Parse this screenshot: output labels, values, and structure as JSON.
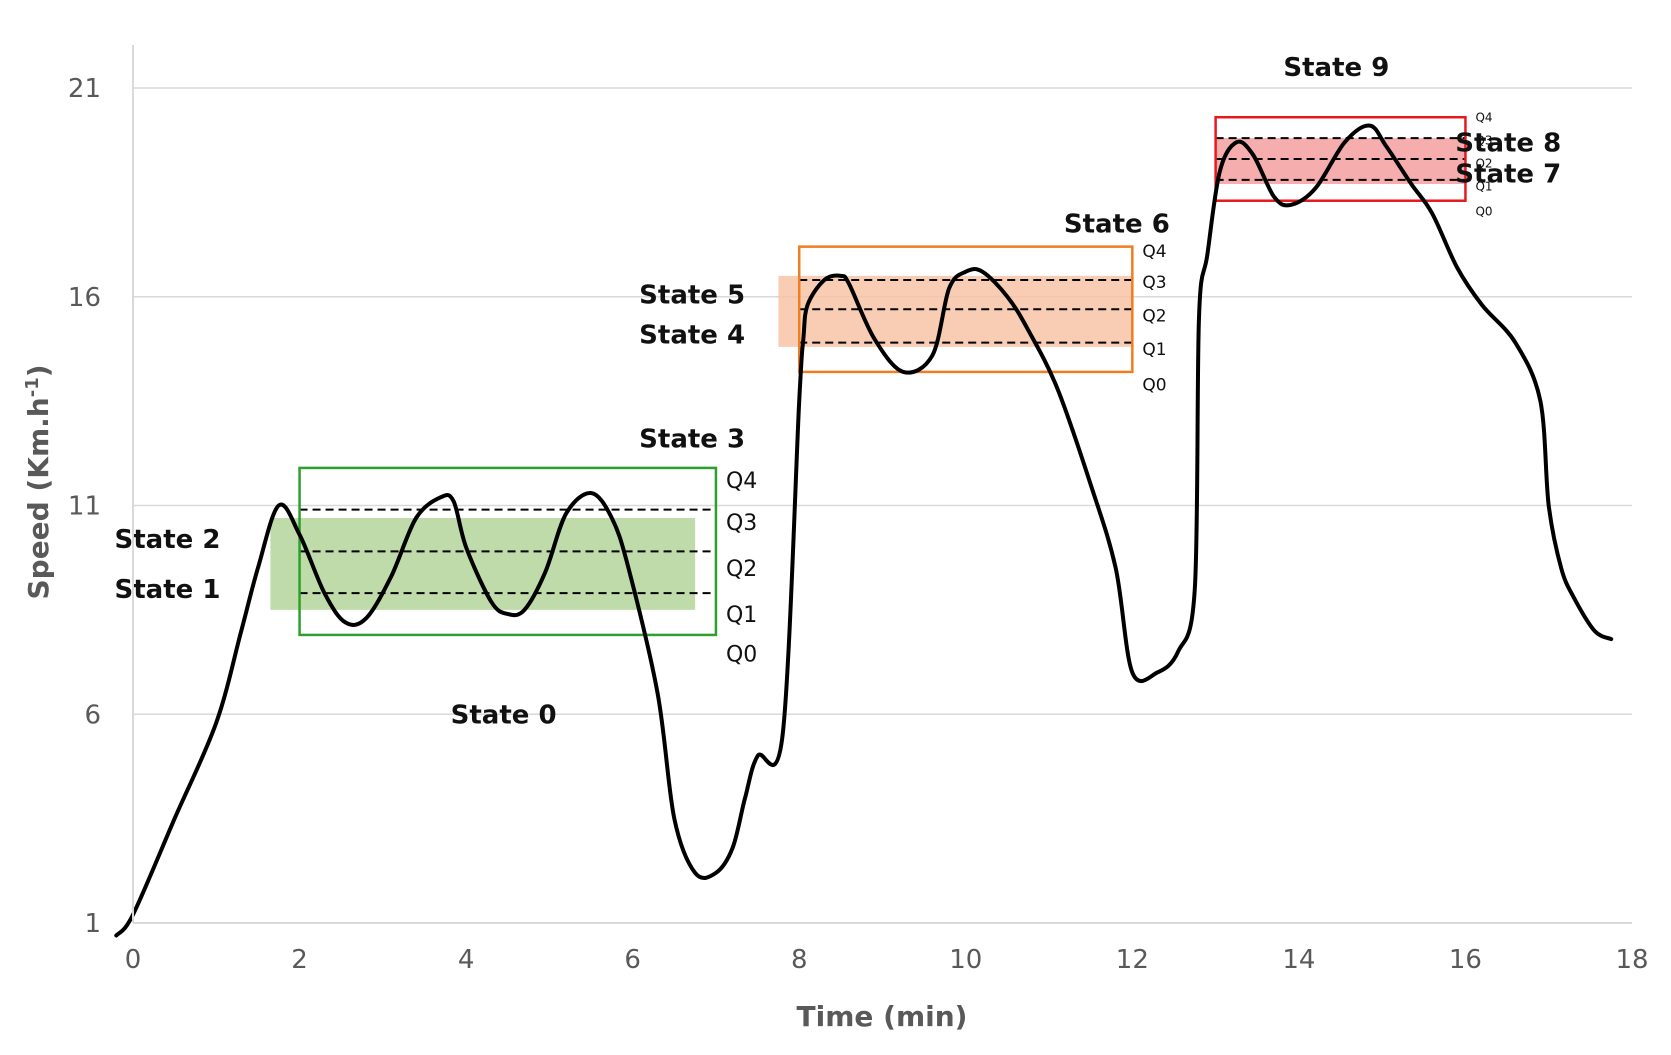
{
  "chart_data": {
    "type": "line",
    "title": "",
    "xlabel": "Time (min)",
    "ylabel_main": "Speed (Km.h",
    "ylabel_sup": "-1",
    "ylabel_end": ")",
    "xlim": [
      0,
      18
    ],
    "ylim": [
      1,
      21
    ],
    "xticks": [
      0,
      2,
      4,
      6,
      8,
      10,
      12,
      14,
      16,
      18
    ],
    "yticks": [
      1,
      6,
      11,
      16,
      21
    ],
    "grid": "horizontal",
    "series": [
      {
        "x": [
          -0.2,
          0,
          0.5,
          1.0,
          1.3,
          1.5,
          1.75,
          2.0,
          2.3,
          2.55,
          2.8,
          3.1,
          3.4,
          3.7,
          3.85,
          4.0,
          4.3,
          4.5,
          4.7,
          4.95,
          5.2,
          5.5,
          5.75,
          5.95,
          6.3,
          6.5,
          6.75,
          7.0,
          7.2,
          7.35,
          7.5,
          7.8,
          8.0,
          8.05,
          8.1,
          8.3,
          8.5,
          8.6,
          8.9,
          9.25,
          9.6,
          9.8,
          10.0,
          10.2,
          10.5,
          10.75,
          11.1,
          11.5,
          11.8,
          12.0,
          12.3,
          12.55,
          12.75,
          12.8,
          12.9,
          13.05,
          13.25,
          13.45,
          13.7,
          13.9,
          14.2,
          14.55,
          14.85,
          15.05,
          15.35,
          15.6,
          15.9,
          16.2,
          16.6,
          16.9,
          17.0,
          17.15,
          17.3,
          17.55,
          17.75
        ],
        "y": [
          0.7,
          1.2,
          3.5,
          5.8,
          8.0,
          9.5,
          11.0,
          10.3,
          8.9,
          8.2,
          8.3,
          9.3,
          10.7,
          11.2,
          11.1,
          10.0,
          8.7,
          8.4,
          8.5,
          9.4,
          10.8,
          11.3,
          10.7,
          9.5,
          6.5,
          3.5,
          2.2,
          2.2,
          2.8,
          4.0,
          5.0,
          5.5,
          13.5,
          15.0,
          15.8,
          16.4,
          16.5,
          16.3,
          15.0,
          14.2,
          14.6,
          16.2,
          16.6,
          16.6,
          16.0,
          15.2,
          13.8,
          11.5,
          9.5,
          7.0,
          7.0,
          7.5,
          9.0,
          15.5,
          17.0,
          19.0,
          19.7,
          19.4,
          18.4,
          18.2,
          18.6,
          19.7,
          20.1,
          19.6,
          18.7,
          18.0,
          16.7,
          15.8,
          14.9,
          13.5,
          11.0,
          9.5,
          8.8,
          8.0,
          7.8
        ]
      }
    ],
    "regions": [
      {
        "name": "green",
        "color": "#2ca02c",
        "fill": "#a9cf8e",
        "fill_opacity": 0.75,
        "box_x": [
          2.0,
          7.0
        ],
        "box_y": [
          7.9,
          11.9
        ],
        "q_lines": [
          8.9,
          9.9,
          10.9
        ],
        "shade_x": [
          1.65,
          6.75
        ],
        "shade_y": [
          8.5,
          10.7
        ],
        "q_labels": [
          "Q4",
          "Q3",
          "Q2",
          "Q1",
          "Q0"
        ],
        "q_label_y": [
          11.6,
          10.6,
          9.5,
          8.4,
          7.45
        ],
        "q_label_size": 22
      },
      {
        "name": "orange",
        "color": "#f07d22",
        "fill": "#f6c0a0",
        "fill_opacity": 0.8,
        "box_x": [
          8.0,
          12.0
        ],
        "box_y": [
          14.2,
          17.2
        ],
        "q_lines": [
          14.9,
          15.7,
          16.4
        ],
        "shade_x": [
          7.75,
          12.0
        ],
        "shade_y": [
          14.8,
          16.5
        ],
        "q_labels": [
          "Q4",
          "Q3",
          "Q2",
          "Q1",
          "Q0"
        ],
        "q_label_y": [
          17.1,
          16.35,
          15.55,
          14.75,
          13.9
        ],
        "q_label_size": 17
      },
      {
        "name": "red",
        "color": "#e8191e",
        "fill": "#f39fa0",
        "fill_opacity": 0.85,
        "box_x": [
          13.0,
          16.0
        ],
        "box_y": [
          18.3,
          20.3
        ],
        "q_lines": [
          18.8,
          19.3,
          19.8
        ],
        "shade_x": [
          13.0,
          16.0
        ],
        "shade_y": [
          18.7,
          19.8
        ],
        "q_labels": [
          "Q4",
          "Q3",
          "Q2",
          "Q1",
          "Q0"
        ],
        "q_label_y": [
          20.3,
          19.75,
          19.2,
          18.65,
          18.05
        ],
        "q_label_size": 12
      }
    ],
    "annotations": [
      {
        "text": "State 0",
        "x": 4.45,
        "y": 6.0,
        "anchor": "middle"
      },
      {
        "text": "State 1",
        "x": 1.05,
        "y": 9.0,
        "anchor": "end"
      },
      {
        "text": "State 2",
        "x": 1.05,
        "y": 10.2,
        "anchor": "end"
      },
      {
        "text": "State 3",
        "x": 7.35,
        "y": 12.6,
        "anchor": "end"
      },
      {
        "text": "State 4",
        "x": 7.35,
        "y": 15.1,
        "anchor": "end"
      },
      {
        "text": "State 5",
        "x": 7.35,
        "y": 16.05,
        "anchor": "end"
      },
      {
        "text": "State 6",
        "x": 12.45,
        "y": 17.75,
        "anchor": "end"
      },
      {
        "text": "State 7",
        "x": 17.15,
        "y": 18.95,
        "anchor": "end"
      },
      {
        "text": "State 8",
        "x": 17.15,
        "y": 19.7,
        "anchor": "end"
      },
      {
        "text": "State 9",
        "x": 14.45,
        "y": 21.5,
        "anchor": "middle"
      }
    ]
  }
}
